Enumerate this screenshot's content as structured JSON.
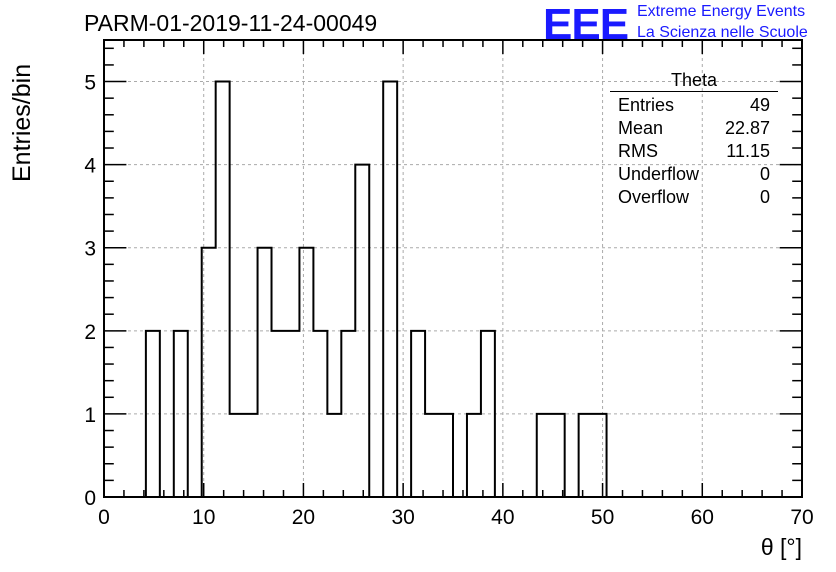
{
  "header": {
    "title": "PARM-01-2019-11-24-00049",
    "logo_text": "EEE",
    "logo_line1": "Extreme Energy Events",
    "logo_line2": "La Scienza nelle Scuole",
    "logo_color": "#1a1aff"
  },
  "chart_data": {
    "type": "bar",
    "histogram": true,
    "xlabel": "θ [°]",
    "ylabel": "Entries/bin",
    "xlim": [
      0,
      70
    ],
    "ylim": [
      0,
      5.5
    ],
    "bin_width": 1.4,
    "bin_edges": [
      4.2,
      5.6,
      7.0,
      8.4,
      9.8,
      11.2,
      12.6,
      14.0,
      15.4,
      16.8,
      18.2,
      19.6,
      21.0,
      22.4,
      23.8,
      25.2,
      26.6,
      28.0,
      29.4,
      30.8,
      32.2,
      33.6,
      35.0,
      36.4,
      37.8,
      39.2,
      40.6,
      42.0,
      43.4,
      44.8,
      46.2,
      47.6,
      49.0,
      50.4
    ],
    "values": [
      2,
      0,
      2,
      0,
      3,
      5,
      1,
      1,
      3,
      2,
      2,
      3,
      2,
      1,
      2,
      4,
      0,
      5,
      0,
      2,
      1,
      1,
      0,
      1,
      2,
      0,
      0,
      0,
      1,
      1,
      0,
      1,
      1
    ],
    "xticks": [
      0,
      10,
      20,
      30,
      40,
      50,
      60,
      70
    ],
    "yticks": [
      0,
      1,
      2,
      3,
      4,
      5
    ],
    "grid": true,
    "stats": {
      "title": "Theta",
      "rows": [
        {
          "label": "Entries",
          "value": "49"
        },
        {
          "label": "Mean",
          "value": "22.87"
        },
        {
          "label": "RMS",
          "value": "11.15"
        },
        {
          "label": "Underflow",
          "value": "0"
        },
        {
          "label": "Overflow",
          "value": "0"
        }
      ]
    }
  }
}
